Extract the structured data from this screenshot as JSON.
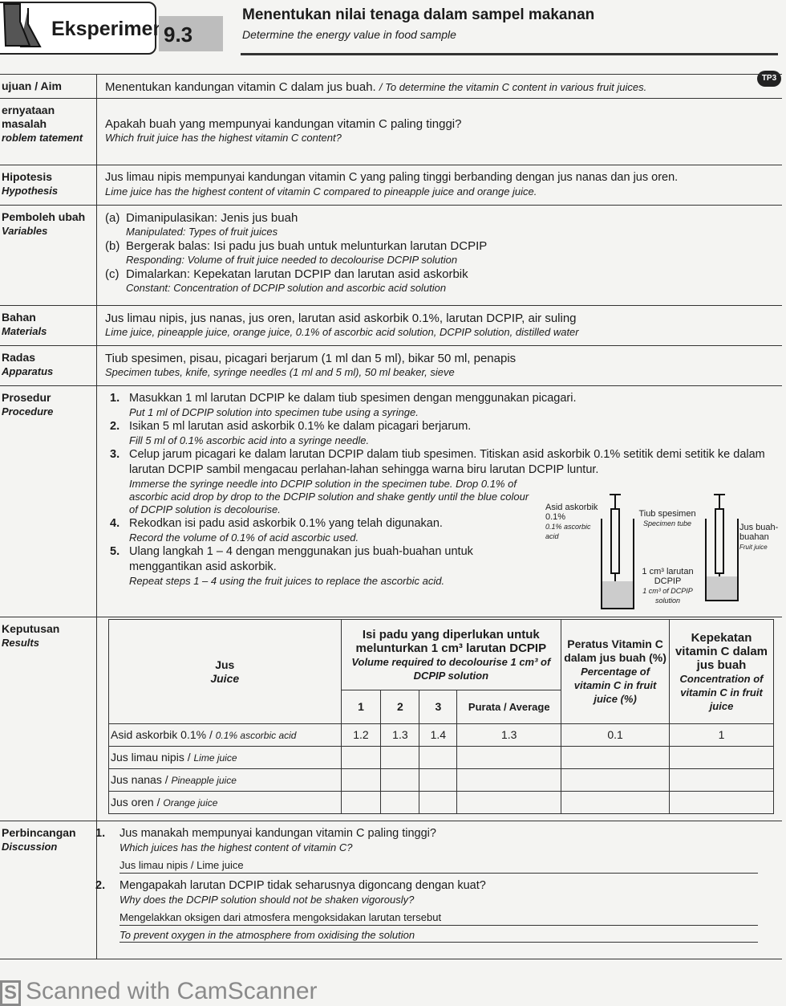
{
  "header": {
    "word": "Eksperimen",
    "number": "9.3",
    "title": "Menentukan nilai tenaga dalam sampel makanan",
    "subtitle": "Determine the energy value in food sample",
    "badge": "TP3"
  },
  "aim": {
    "label": "ujuan / Aim",
    "text": "Menentukan kandungan vitamin C dalam jus buah.",
    "text_en": "/ To determine the vitamin C content in various fruit juices."
  },
  "problem": {
    "label": "ernyataan masalah",
    "label_en": "roblem tatement",
    "text": "Apakah buah yang mempunyai kandungan vitamin C paling tinggi?",
    "text_en": "Which fruit juice has the highest vitamin C content?"
  },
  "hypothesis": {
    "label": "Hipotesis",
    "label_en": "Hypothesis",
    "text": "Jus limau nipis mempunyai kandungan vitamin C yang paling tinggi berbanding dengan jus nanas dan jus oren.",
    "text_en": "Lime juice has the highest content of vitamin C compared to pineapple juice and orange juice."
  },
  "variables": {
    "label": "Pemboleh ubah",
    "label_en": "Variables",
    "items": [
      {
        "marker": "(a)",
        "text": "Dimanipulasikan: Jenis jus buah",
        "text_en": "Manipulated: Types of fruit juices"
      },
      {
        "marker": "(b)",
        "text": "Bergerak balas: Isi padu jus buah untuk melunturkan larutan DCPIP",
        "text_en": "Responding: Volume of fruit juice needed to decolourise DCPIP solution"
      },
      {
        "marker": "(c)",
        "text": "Dimalarkan: Kepekatan larutan DCPIP dan larutan asid askorbik",
        "text_en": "Constant: Concentration of DCPIP solution and ascorbic acid solution"
      }
    ]
  },
  "materials": {
    "label": "Bahan",
    "label_en": "Materials",
    "text": "Jus limau nipis, jus nanas, jus oren, larutan asid askorbik 0.1%, larutan DCPIP, air suling",
    "text_en": "Lime juice, pineapple juice, orange juice, 0.1% of ascorbic acid solution, DCPIP solution, distilled water"
  },
  "apparatus": {
    "label": "Radas",
    "label_en": "Apparatus",
    "text": "Tiub spesimen, pisau, picagari berjarum (1 ml dan 5 ml), bikar 50 ml, penapis",
    "text_en": "Specimen tubes, knife, syringe needles (1 ml and 5 ml), 50 ml beaker, sieve"
  },
  "procedure": {
    "label": "Prosedur",
    "label_en": "Procedure",
    "steps": [
      {
        "n": "1.",
        "text": "Masukkan 1 ml larutan DCPIP ke dalam tiub spesimen dengan menggunakan picagari.",
        "text_en": "Put 1 ml of DCPIP solution into specimen tube using a syringe."
      },
      {
        "n": "2.",
        "text": "Isikan 5 ml larutan asid askorbik 0.1% ke dalam picagari berjarum.",
        "text_en": "Fill 5 ml of 0.1% ascorbic acid into a syringe needle."
      },
      {
        "n": "3.",
        "text": "Celup jarum picagari ke dalam larutan DCPIP dalam tiub spesimen. Titiskan asid askorbik 0.1% setitik demi setitik ke dalam larutan DCPIP sambil mengacau perlahan-lahan sehingga warna biru larutan DCPIP luntur.",
        "text_en": "Immerse the syringe needle into DCPIP solution in the specimen tube. Drop 0.1% of ascorbic acid drop by drop to the DCPIP solution and shake gently until the blue colour of DCPIP solution is decolourise."
      },
      {
        "n": "4.",
        "text": "Rekodkan isi padu asid askorbik 0.1% yang telah digunakan.",
        "text_en": "Record the volume of 0.1% of acid ascorbic used."
      },
      {
        "n": "5.",
        "text": "Ulang langkah 1 – 4 dengan menggunakan jus buah-buahan untuk menggantikan asid askorbik.",
        "text_en": "Repeat steps 1 – 4 using the fruit juices to replace the ascorbic acid."
      }
    ],
    "diagram": {
      "acid": "Asid askorbik 0.1%",
      "acid_en": "0.1% ascorbic acid",
      "tube": "Tiub spesimen",
      "tube_en": "Specimen tube",
      "dcpip": "1 cm³ larutan DCPIP",
      "dcpip_en": "1 cm³ of DCPIP solution",
      "juice": "Jus buah-buahan",
      "juice_en": "Fruit juice"
    }
  },
  "results": {
    "label": "Keputusan",
    "label_en": "Results",
    "headers": {
      "juice": "Jus",
      "juice_en": "Juice",
      "volume": "Isi padu yang diperlukan untuk melunturkan 1 cm³ larutan DCPIP",
      "volume_en": "Volume required to decolourise 1 cm³ of DCPIP solution",
      "t1": "1",
      "t2": "2",
      "t3": "3",
      "avg": "Purata / Average",
      "pct": "Peratus Vitamin C dalam jus buah (%)",
      "pct_en": "Percentage of vitamin C in fruit juice (%)",
      "conc": "Kepekatan vitamin C dalam jus buah",
      "conc_en": "Concentration of vitamin C in fruit juice"
    },
    "rows": [
      {
        "juice": "Asid askorbik 0.1% / ",
        "juice_en": "0.1% ascorbic acid",
        "v1": "1.2",
        "v2": "1.3",
        "v3": "1.4",
        "avg": "1.3",
        "pct": "0.1",
        "conc": "1"
      },
      {
        "juice": "Jus limau nipis / ",
        "juice_en": "Lime juice",
        "v1": "",
        "v2": "",
        "v3": "",
        "avg": "",
        "pct": "",
        "conc": ""
      },
      {
        "juice": "Jus nanas / ",
        "juice_en": "Pineapple juice",
        "v1": "",
        "v2": "",
        "v3": "",
        "avg": "",
        "pct": "",
        "conc": ""
      },
      {
        "juice": "Jus oren / ",
        "juice_en": "Orange juice",
        "v1": "",
        "v2": "",
        "v3": "",
        "avg": "",
        "pct": "",
        "conc": ""
      }
    ]
  },
  "discussion": {
    "label": "Perbincangan",
    "label_en": "Discussion",
    "questions": [
      {
        "n": "1.",
        "q": "Jus manakah mempunyai kandungan vitamin C paling tinggi?",
        "q_en": "Which juices has the highest content of vitamin C?",
        "a": "Jus limau nipis / Lime juice",
        "a_en": ""
      },
      {
        "n": "2.",
        "q": "Mengapakah larutan DCPIP tidak seharusnya digoncang dengan kuat?",
        "q_en": "Why does the DCPIP solution should not be shaken vigorously?",
        "a": "Mengelakkan oksigen dari atmosfera mengoksidakan larutan tersebut",
        "a_en": "To prevent oxygen in the atmosphere from oxidising the solution"
      }
    ]
  },
  "footer": {
    "logo": "S",
    "text": "Scanned with CamScanner"
  }
}
